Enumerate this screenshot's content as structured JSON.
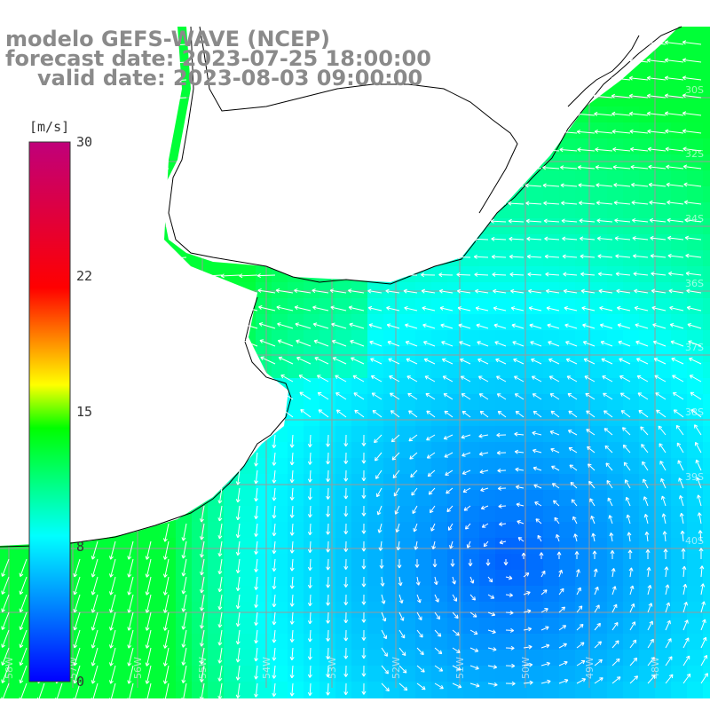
{
  "header": {
    "line1": "modelo GEFS-WAVE (NCEP)",
    "line2": "forecast date: 2023-07-25 18:00:00",
    "line3": "valid date: 2023-08-03 09:00:00"
  },
  "colorbar": {
    "unit": "[m/s]",
    "ticks": [
      {
        "label": "30",
        "value": 30
      },
      {
        "label": "22",
        "value": 22
      },
      {
        "label": "15",
        "value": 15
      },
      {
        "label": "8",
        "value": 8
      },
      {
        "label": "0",
        "value": 0
      }
    ],
    "colors": [
      "#0000ff",
      "#00ffff",
      "#00ff00",
      "#ffff00",
      "#ff0000",
      "#c0007a"
    ]
  },
  "map": {
    "ocean_label_color": "#ffffff",
    "land_color": "#ffffff",
    "grid_color": "#9a9a9a",
    "lat_labels": [
      "30S",
      "32S",
      "34S",
      "36S",
      "37S",
      "38S",
      "39S",
      "40S"
    ],
    "lon_labels": [
      "58W",
      "57W",
      "56W",
      "55W",
      "54W",
      "53W",
      "52W",
      "51W",
      "50W",
      "49W",
      "48W"
    ]
  }
}
